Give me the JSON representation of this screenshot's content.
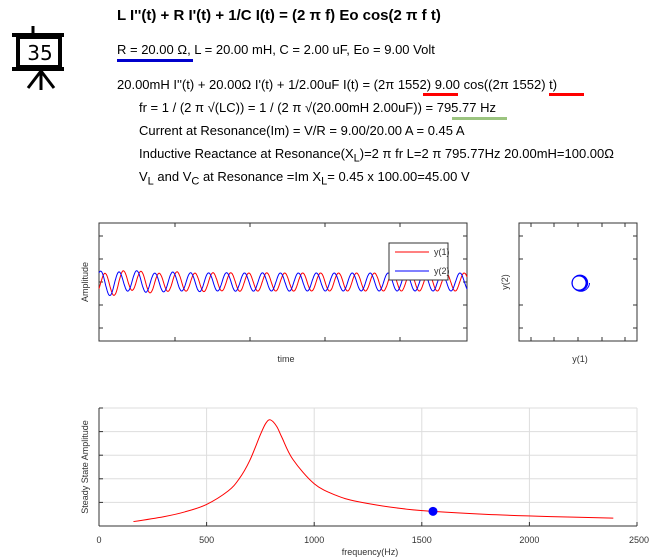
{
  "header": {
    "title": "L I''(t) + R I'(t) + 1/C I(t) = (2 π f) Eo cos(2 π f t)",
    "params": "R = 20.00 Ω, L = 20.00 mH, C = 2.00 uF, Eo = 9.00 Volt",
    "equation": "20.00mH I''(t) + 20.00Ω I'(t) + 1/2.00uF I(t) = (2π 1552) 9.00 cos((2π 1552) t)",
    "resonance": "fr = 1 / (2 π √(LC)) = 1 / (2 π √(20.00mH 2.00uF)) = 795.77 Hz",
    "current": "Current at Resonance(Im) = V/R = 9.00/20.00 A = 0.45 A",
    "reactance_pre": "Inductive Reactance at Resonance(X",
    "reactance_sub": "L",
    "reactance_post": ")=2 π fr L=2 π 795.77Hz 20.00mH=100.00Ω",
    "v_pre": "V",
    "v_sub1": "L",
    "v_mid": " and V",
    "v_sub2": "C",
    "v_mid2": " at Resonance =Im X",
    "v_sub3": "L",
    "v_post": "= 0.45 x 100.00=45.00 V"
  },
  "slide_icon": {
    "number": "35"
  },
  "colors": {
    "red": "#ff0000",
    "blue": "#0000ff",
    "green": "#9bc47f",
    "underline_blue": "#0000cc"
  },
  "chart_data": [
    {
      "type": "line",
      "xlabel": "time",
      "ylabel": "Amplitude",
      "legend": "top-right",
      "series": [
        {
          "name": "y(1)",
          "color": "#ff0000"
        },
        {
          "name": "y(2)",
          "color": "#0000ff"
        }
      ],
      "drive_frequency_hz": 1552
    },
    {
      "type": "scatter",
      "xlabel": "y(1)",
      "ylabel": "y(2)"
    },
    {
      "type": "line",
      "xlabel": "frequency(Hz)",
      "ylabel": "Steady State Amplitude",
      "xlim": [
        0,
        2500
      ],
      "ylim": [
        0,
        0.5
      ],
      "grid": true,
      "xticks": [
        "0",
        "500",
        "1000",
        "1500",
        "2000",
        "2500"
      ],
      "x": [
        160,
        300,
        400,
        500,
        600,
        650,
        700,
        750,
        775,
        796,
        825,
        850,
        900,
        1000,
        1100,
        1200,
        1400,
        1552,
        1800,
        2100,
        2390
      ],
      "y": [
        0.0188,
        0.0394,
        0.06,
        0.0915,
        0.1485,
        0.1983,
        0.2763,
        0.3871,
        0.435,
        0.45,
        0.4233,
        0.3756,
        0.2833,
        0.1791,
        0.1307,
        0.1037,
        0.0745,
        0.062,
        0.0492,
        0.0397,
        0.0336
      ],
      "marker": {
        "x": 1552,
        "y": 0.062,
        "color": "#0000ff"
      }
    }
  ]
}
